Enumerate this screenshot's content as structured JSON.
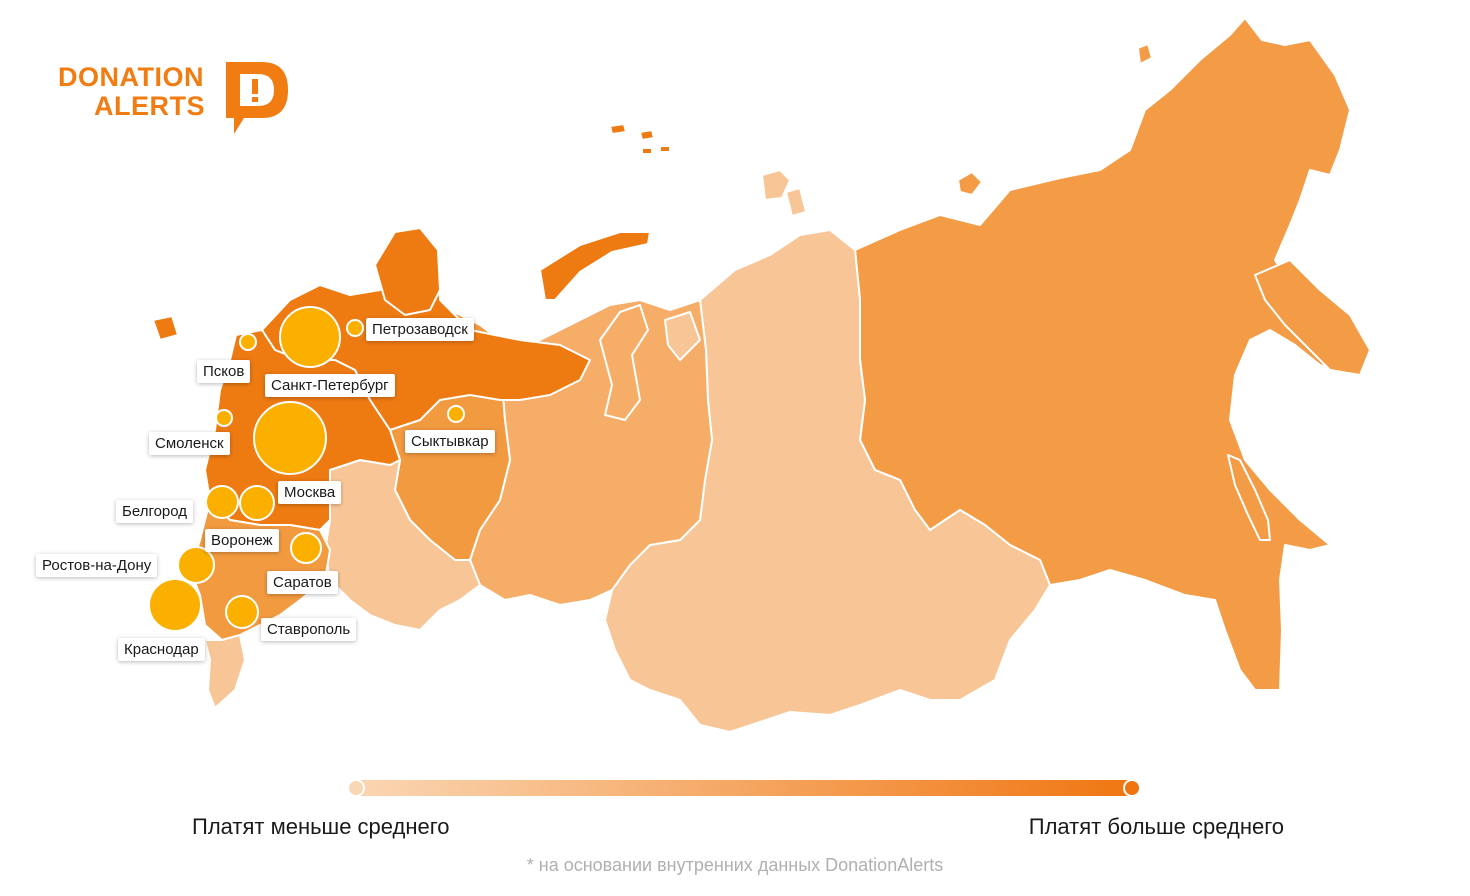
{
  "logo": {
    "line1": "DONATION",
    "line2": "ALERTS",
    "mark": "D!"
  },
  "colors": {
    "high": "#ee7a12",
    "mid_high": "#f29a40",
    "medium": "#f5ad68",
    "low": "#f8c696",
    "bubble": "#fbb000",
    "legend_low": "#fad7b4",
    "legend_high": "#f07510"
  },
  "cities": [
    {
      "name": "Петрозаводск"
    },
    {
      "name": "Псков"
    },
    {
      "name": "Санкт-Петербург"
    },
    {
      "name": "Смоленск"
    },
    {
      "name": "Сыктывкар"
    },
    {
      "name": "Москва"
    },
    {
      "name": "Белгород"
    },
    {
      "name": "Воронеж"
    },
    {
      "name": "Ростов-на-Дону"
    },
    {
      "name": "Саратов"
    },
    {
      "name": "Ставрополь"
    },
    {
      "name": "Краснодар"
    }
  ],
  "legend": {
    "low_label": "Платят меньше среднего",
    "high_label": "Платят больше среднего"
  },
  "footnote": "* на основании внутренних данных  DonationAlerts"
}
